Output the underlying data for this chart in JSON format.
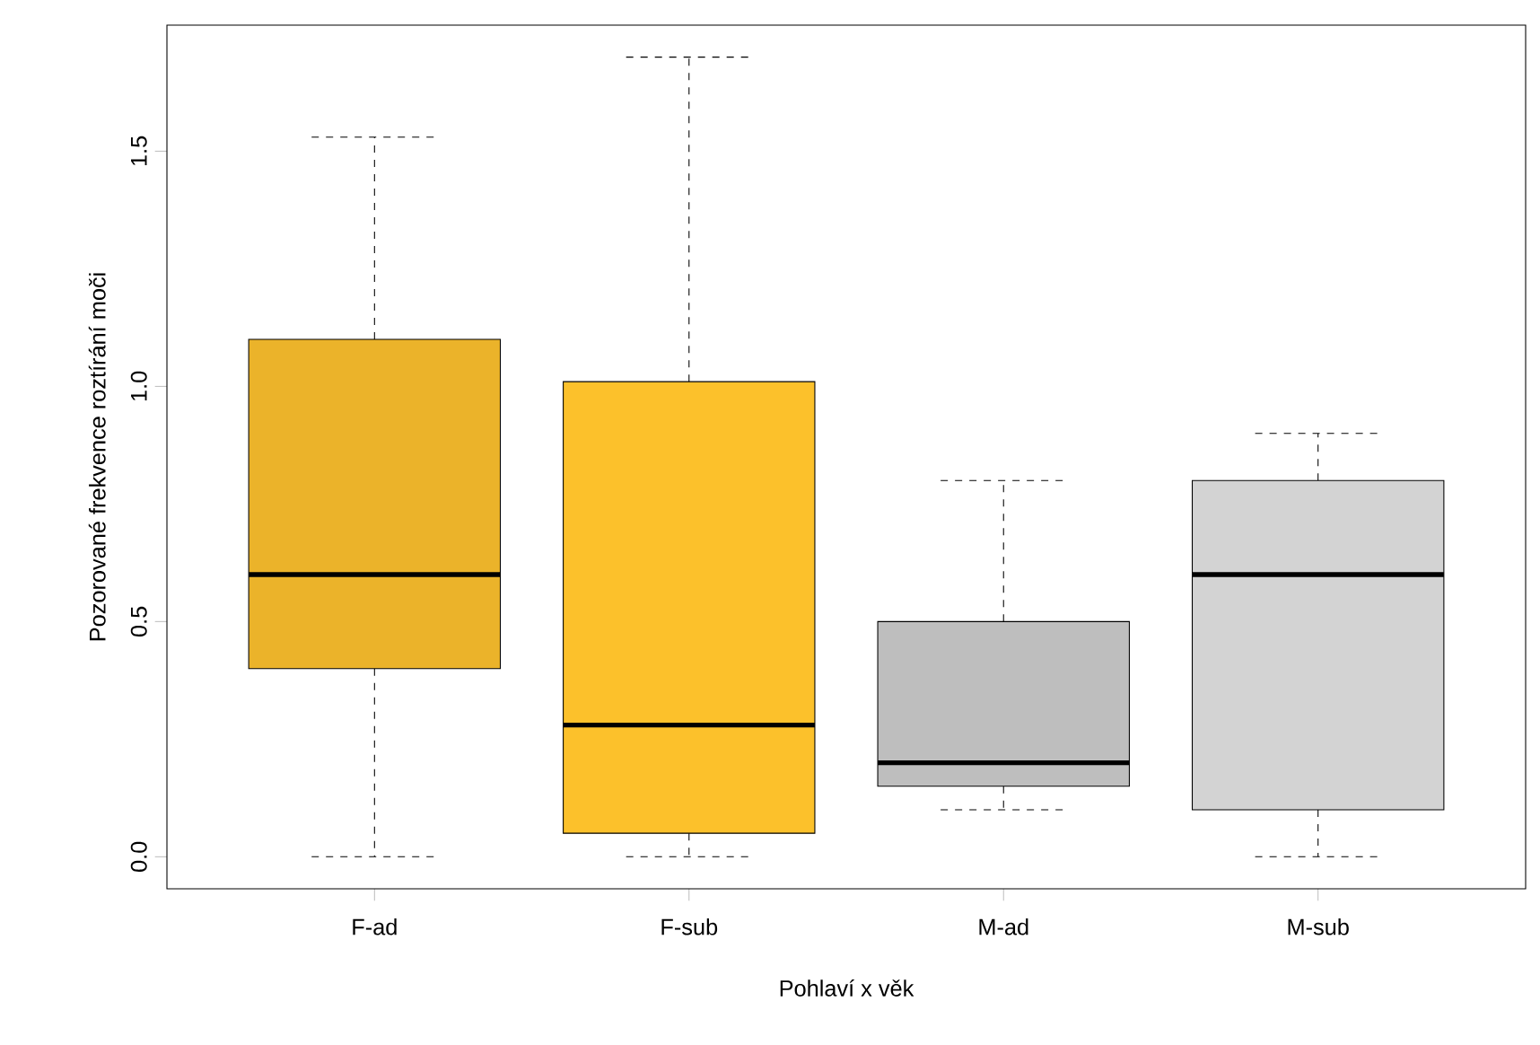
{
  "chart_data": {
    "type": "box",
    "xlabel": "Pohlaví x věk",
    "ylabel": "Pozorované frekvence roztírání moči",
    "categories": [
      "F-ad",
      "F-sub",
      "M-ad",
      "M-sub"
    ],
    "colors": [
      "#ebb32a",
      "#fcc12b",
      "#bebebe",
      "#d3d3d3"
    ],
    "boxes": [
      {
        "low": 0,
        "q1": 0.4,
        "median": 0.6,
        "q3": 1.1,
        "high": 1.53
      },
      {
        "low": 0,
        "q1": 0.05,
        "median": 0.28,
        "q3": 1.01,
        "high": 1.7
      },
      {
        "low": 0.1,
        "q1": 0.15,
        "median": 0.2,
        "q3": 0.5,
        "high": 0.8
      },
      {
        "low": 0,
        "q1": 0.1,
        "median": 0.6,
        "q3": 0.8,
        "high": 0.9
      }
    ],
    "ylim": [
      -0.068,
      1.768
    ],
    "yticks": [
      {
        "value": 0,
        "label": "0.0"
      },
      {
        "value": 0.5,
        "label": "0.5"
      },
      {
        "value": 1,
        "label": "1.0"
      },
      {
        "value": 1.5,
        "label": "1.5"
      }
    ],
    "grid": false
  }
}
